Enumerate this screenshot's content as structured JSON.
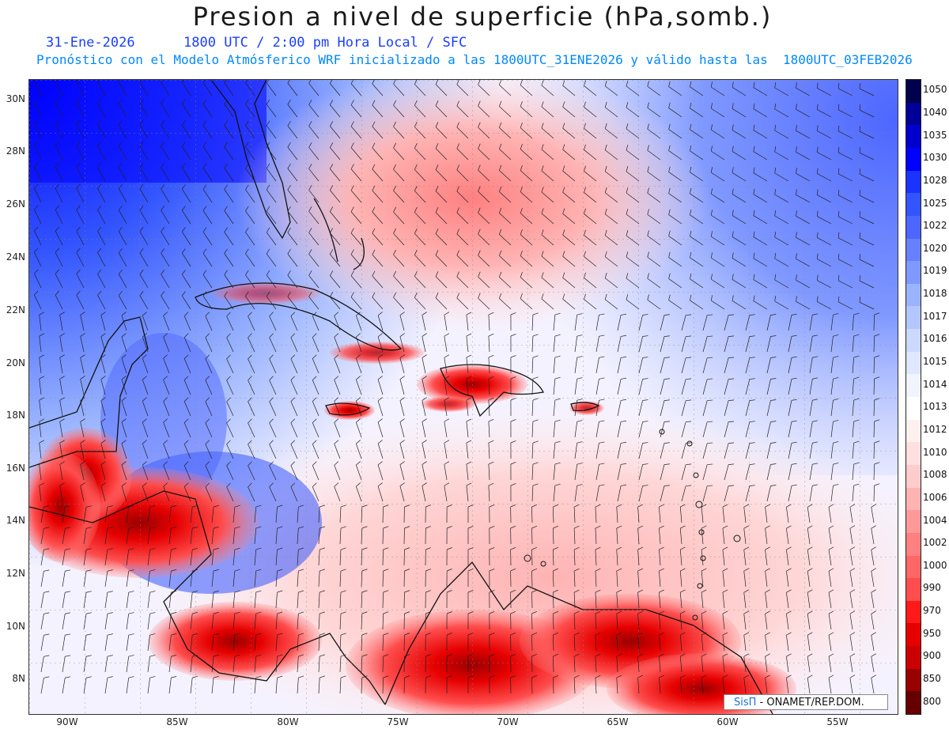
{
  "header": {
    "title": "Presion a nivel de superficie (hPa,somb.)",
    "date": "31-Ene-2026",
    "time": "1800 UTC / 2:00 pm Hora Local / SFC",
    "forecast_line": "Pronóstico con el Modelo Atmósferico WRF inicializado a las 1800UTC_31ENE2026 y válido hasta las  1800UTC_03FEB2026"
  },
  "map": {
    "lat_labels": [
      "30N",
      "28N",
      "26N",
      "24N",
      "22N",
      "20N",
      "18N",
      "16N",
      "14N",
      "12N",
      "10N",
      "8N"
    ],
    "lon_labels": [
      "90W",
      "85W",
      "80W",
      "75W",
      "70W",
      "65W",
      "60W",
      "55W"
    ],
    "colors": {
      "high": "#1a1aff",
      "neutral": "#ffffff",
      "low": "#e60000",
      "very_low": "#7a0000"
    }
  },
  "colorbar": {
    "levels": [
      "1050",
      "1040",
      "1035",
      "1030",
      "1028",
      "1025",
      "1022",
      "1020",
      "1019",
      "1018",
      "1017",
      "1016",
      "1015",
      "1014",
      "1013",
      "1012",
      "1010",
      "1008",
      "1006",
      "1004",
      "1002",
      "1000",
      "990",
      "970",
      "950",
      "900",
      "850",
      "800"
    ],
    "colors": [
      "#00004d",
      "#000099",
      "#0000cc",
      "#0000ff",
      "#1a33ff",
      "#3355ff",
      "#4d66ff",
      "#6680ff",
      "#8099ff",
      "#99b3ff",
      "#b3c6ff",
      "#ccd9ff",
      "#e0e8ff",
      "#f0f4ff",
      "#ffffff",
      "#fff0f0",
      "#ffe0e0",
      "#ffcccc",
      "#ffb3b3",
      "#ff9999",
      "#ff8080",
      "#ff6666",
      "#ff4d4d",
      "#ff1a1a",
      "#e60000",
      "#cc0000",
      "#990000",
      "#660000"
    ]
  },
  "credit": {
    "brand": "SisΠ",
    "text": " - ONAMET/REP.DOM."
  }
}
